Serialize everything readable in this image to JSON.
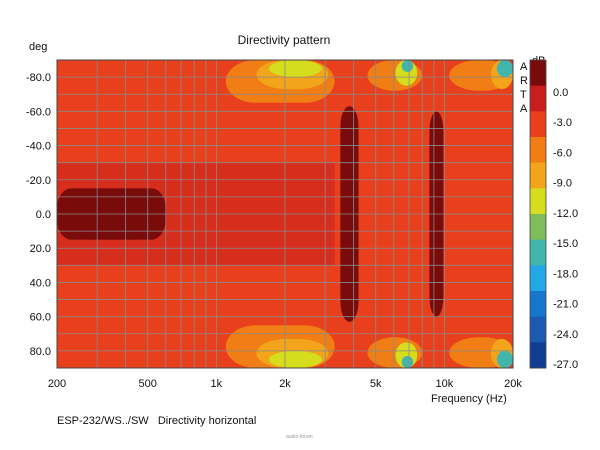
{
  "chart_data": {
    "type": "heatmap",
    "title": "Directivity pattern",
    "xlabel": "Frequency (Hz)",
    "ylabel": "deg",
    "x_scale": "log",
    "xlim": [
      200,
      20000
    ],
    "ylim": [
      -90,
      90
    ],
    "x_ticks": [
      {
        "value": 200,
        "label": "200"
      },
      {
        "value": 500,
        "label": "500"
      },
      {
        "value": 1000,
        "label": "1k"
      },
      {
        "value": 2000,
        "label": "2k"
      },
      {
        "value": 5000,
        "label": "5k"
      },
      {
        "value": 10000,
        "label": "10k"
      },
      {
        "value": 20000,
        "label": "20k"
      }
    ],
    "y_ticks": [
      {
        "value": -80,
        "label": "-80.0"
      },
      {
        "value": -60,
        "label": "-60.0"
      },
      {
        "value": -40,
        "label": "-40.0"
      },
      {
        "value": -20,
        "label": "-20.0"
      },
      {
        "value": 0,
        "label": "0.0"
      },
      {
        "value": 20,
        "label": "20.0"
      },
      {
        "value": 40,
        "label": "40.0"
      },
      {
        "value": 60,
        "label": "60.0"
      },
      {
        "value": 80,
        "label": "80.0"
      }
    ],
    "colorbar": {
      "label": "dB",
      "ticks": [
        "0.0",
        "-3.0",
        "-6.0",
        "-9.0",
        "-12.0",
        "-15.0",
        "-18.0",
        "-21.0",
        "-24.0",
        "-27.0"
      ],
      "colors": [
        "#7a0b0b",
        "#c81e1e",
        "#e8401c",
        "#f07e14",
        "#f2a41b",
        "#d5dd1c",
        "#7fbd5a",
        "#42b6ad",
        "#22a8e6",
        "#1676cc",
        "#1c5cb0",
        "#123b92"
      ]
    },
    "logo": "ARTA",
    "gridlines": true,
    "contours": [
      {
        "level_db": -1.5,
        "color": "#7a0b0b",
        "regions": [
          {
            "f_from": 200,
            "f_to": 600,
            "deg_from": -15,
            "deg_to": 15
          },
          {
            "f_from": 3500,
            "f_to": 4200,
            "deg_from": -63,
            "deg_to": 63
          },
          {
            "f_from": 8600,
            "f_to": 9900,
            "deg_from": -60,
            "deg_to": 60
          }
        ]
      },
      {
        "level_db": -4.5,
        "color": "#e8401c",
        "regions": [
          {
            "f_from": 200,
            "f_to": 20000,
            "deg_from": -90,
            "deg_to": 90
          }
        ]
      },
      {
        "level_db": -7.5,
        "color": "#f07e14",
        "regions": [
          {
            "f_from": 1100,
            "f_to": 3300,
            "deg_from": -90,
            "deg_to": -65
          },
          {
            "f_from": 1100,
            "f_to": 3300,
            "deg_from": 65,
            "deg_to": 90
          },
          {
            "f_from": 4600,
            "f_to": 8000,
            "deg_from": -90,
            "deg_to": -72
          },
          {
            "f_from": 4600,
            "f_to": 8000,
            "deg_from": 72,
            "deg_to": 90
          },
          {
            "f_from": 10500,
            "f_to": 20000,
            "deg_from": -90,
            "deg_to": -72
          },
          {
            "f_from": 10500,
            "f_to": 20000,
            "deg_from": 72,
            "deg_to": 90
          }
        ]
      },
      {
        "level_db": -10.5,
        "color": "#f2a41b",
        "regions": [
          {
            "f_from": 1500,
            "f_to": 3100,
            "deg_from": -90,
            "deg_to": -73
          },
          {
            "f_from": 1500,
            "f_to": 3100,
            "deg_from": 73,
            "deg_to": 90
          },
          {
            "f_from": 16000,
            "f_to": 20000,
            "deg_from": -90,
            "deg_to": -73
          },
          {
            "f_from": 16000,
            "f_to": 20000,
            "deg_from": 73,
            "deg_to": 90
          }
        ]
      },
      {
        "level_db": -12,
        "color": "#d5dd1c",
        "regions": [
          {
            "f_from": 1700,
            "f_to": 2900,
            "deg_from": -90,
            "deg_to": -80
          },
          {
            "f_from": 1700,
            "f_to": 2900,
            "deg_from": 80,
            "deg_to": 90
          },
          {
            "f_from": 6100,
            "f_to": 7600,
            "deg_from": -90,
            "deg_to": -75
          },
          {
            "f_from": 6100,
            "f_to": 7600,
            "deg_from": 75,
            "deg_to": 90
          }
        ]
      },
      {
        "level_db": -15,
        "color": "#42b6ad",
        "regions": [
          {
            "f_from": 6500,
            "f_to": 7300,
            "deg_from": -90,
            "deg_to": -83
          },
          {
            "f_from": 6500,
            "f_to": 7300,
            "deg_from": 83,
            "deg_to": 90
          },
          {
            "f_from": 17000,
            "f_to": 20000,
            "deg_from": -90,
            "deg_to": -80
          },
          {
            "f_from": 17000,
            "f_to": 20000,
            "deg_from": 80,
            "deg_to": 90
          }
        ]
      }
    ]
  },
  "caption": "ESP-232/WS../SW   Directivity horizontal",
  "watermark": "audio-forum"
}
